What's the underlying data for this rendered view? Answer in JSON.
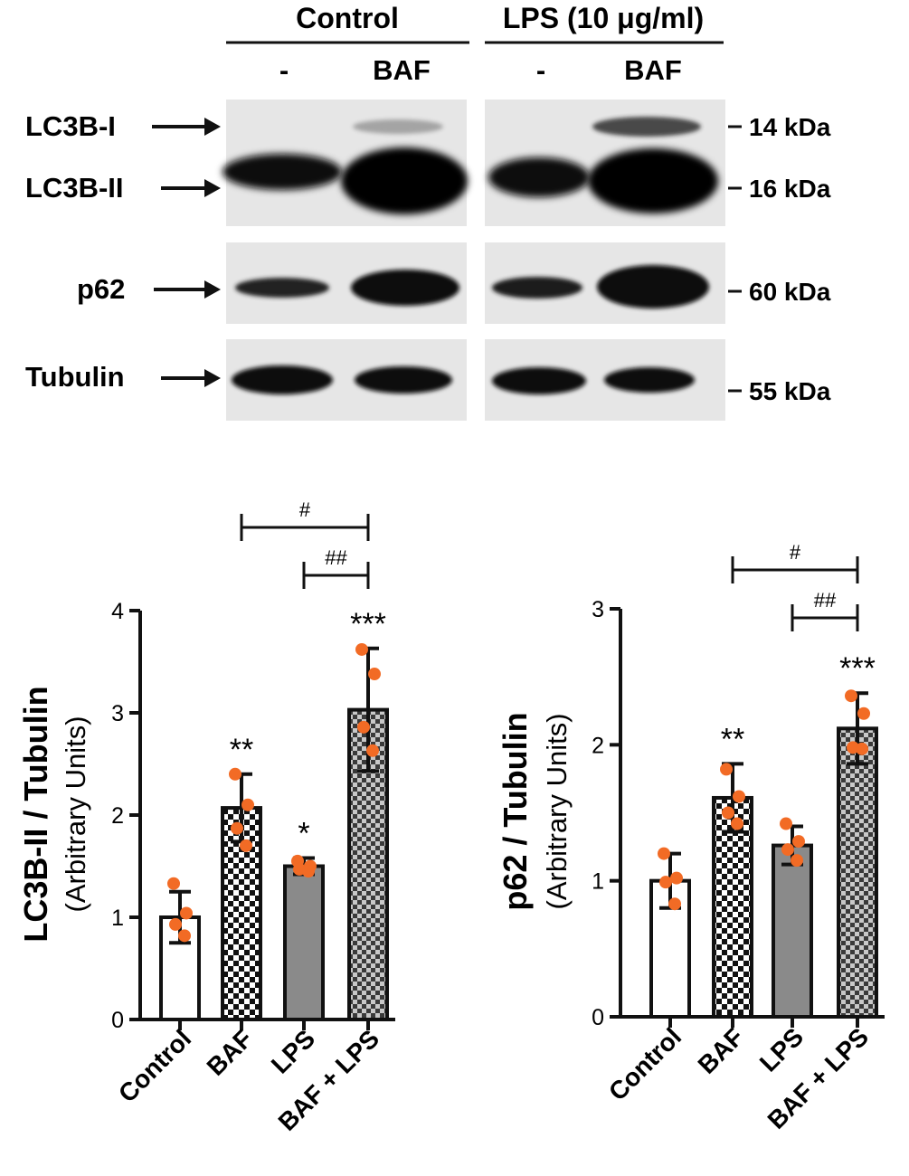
{
  "blot": {
    "groups": [
      {
        "label": "Control",
        "lanes": [
          "-",
          "BAF"
        ]
      },
      {
        "label": "LPS (10 μg/ml)",
        "lanes": [
          "-",
          "BAF"
        ]
      }
    ],
    "band_labels": [
      "LC3B-I",
      "LC3B-II",
      "p62",
      "Tubulin"
    ],
    "markers": [
      "14 kDa",
      "16 kDa",
      "60 kDa",
      "55 kDa"
    ]
  },
  "chart_data": [
    {
      "type": "bar",
      "categories": [
        "Control",
        "BAF",
        "LPS",
        "BAF + LPS"
      ],
      "values": [
        1.0,
        2.07,
        1.5,
        3.03
      ],
      "errors": [
        0.25,
        0.33,
        0.08,
        0.6
      ],
      "points": [
        [
          1.33,
          1.04,
          0.93,
          0.82
        ],
        [
          2.4,
          2.1,
          1.87,
          1.7
        ],
        [
          1.55,
          1.5,
          1.47,
          1.45
        ],
        [
          3.62,
          3.38,
          2.86,
          2.63
        ]
      ],
      "significance": [
        "",
        "**",
        "*",
        "***"
      ],
      "brackets": [
        {
          "from": "BAF",
          "to": "BAF + LPS",
          "label": "#"
        },
        {
          "from": "LPS",
          "to": "BAF + LPS",
          "label": "##"
        }
      ],
      "ylabel": "LC3B-II / Tubulin",
      "ylabel_sub": "(Arbitrary Units)",
      "ylim": [
        0,
        4
      ],
      "yticks": [
        "0",
        "1",
        "2",
        "3",
        "4"
      ],
      "fills": [
        "white",
        "checker",
        "gray",
        "dark-checker"
      ],
      "point_color": "#F26B25"
    },
    {
      "type": "bar",
      "categories": [
        "Control",
        "BAF",
        "LPS",
        "BAF + LPS"
      ],
      "values": [
        1.0,
        1.61,
        1.26,
        2.12
      ],
      "errors": [
        0.2,
        0.25,
        0.14,
        0.26
      ],
      "points": [
        [
          1.2,
          1.02,
          0.99,
          0.83
        ],
        [
          1.82,
          1.62,
          1.5,
          1.42
        ],
        [
          1.42,
          1.29,
          1.23,
          1.15
        ],
        [
          2.36,
          2.23,
          1.98,
          1.97
        ]
      ],
      "significance": [
        "",
        "**",
        "",
        "***"
      ],
      "brackets": [
        {
          "from": "BAF",
          "to": "BAF + LPS",
          "label": "#"
        },
        {
          "from": "LPS",
          "to": "BAF + LPS",
          "label": "##"
        }
      ],
      "ylabel": "p62 / Tubulin",
      "ylabel_sub": "(Arbitrary Units)",
      "ylim": [
        0,
        3
      ],
      "yticks": [
        "0",
        "1",
        "2",
        "3"
      ],
      "fills": [
        "white",
        "checker",
        "gray",
        "dark-checker"
      ],
      "point_color": "#F26B25"
    }
  ]
}
